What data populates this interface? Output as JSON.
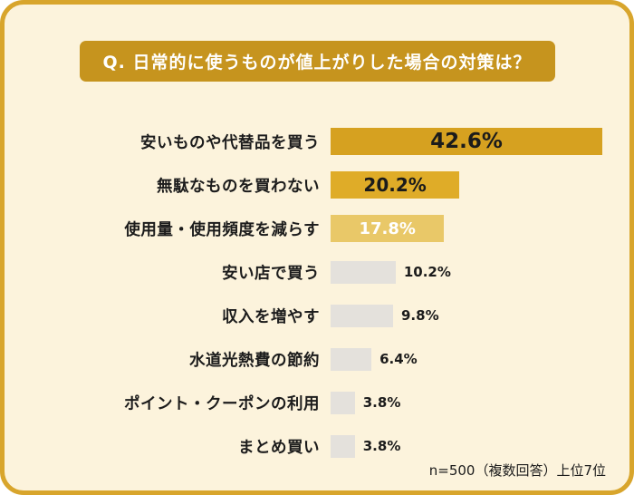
{
  "header": {
    "title": "Q. 日常的に使うものが値上がりした場合の対策は？"
  },
  "footer": {
    "note": "n=500（複数回答）上位7位"
  },
  "colors": {
    "frame_border": "#D8A52C",
    "background": "#FCF3DC",
    "title_badge_bg": "#C6941E",
    "title_badge_text": "#FFFFFF",
    "bar_gold_strong": "#D6A120",
    "bar_gold_medium": "#DFAC28",
    "bar_gold_light": "#E9C868",
    "bar_gray": "#E4E1DC"
  },
  "chart_data": {
    "type": "bar",
    "orientation": "horizontal",
    "title": "Q. 日常的に使うものが値上がりした場合の対策は？",
    "categories": [
      "安いものや代替品を買う",
      "無駄なものを買わない",
      "使用量・使用頻度を減らす",
      "安い店で買う",
      "収入を増やす",
      "水道光熱費の節約",
      "ポイント・クーポンの利用",
      "まとめ買い"
    ],
    "values": [
      42.6,
      20.2,
      17.8,
      10.2,
      9.8,
      6.4,
      3.8,
      3.8
    ],
    "value_labels": [
      "42.6%",
      "20.2%",
      "17.8%",
      "10.2%",
      "9.8%",
      "6.4%",
      "3.8%",
      "3.8%"
    ],
    "bar_colors": [
      "#D6A120",
      "#DFAC28",
      "#E9C868",
      "#E4E1DC",
      "#E4E1DC",
      "#E4E1DC",
      "#E4E1DC",
      "#E4E1DC"
    ],
    "label_inside": [
      true,
      true,
      true,
      false,
      false,
      false,
      false,
      false
    ],
    "xlim": [
      0,
      45
    ],
    "grid": false,
    "legend": false,
    "sample_note": "n=500（複数回答）上位7位"
  }
}
